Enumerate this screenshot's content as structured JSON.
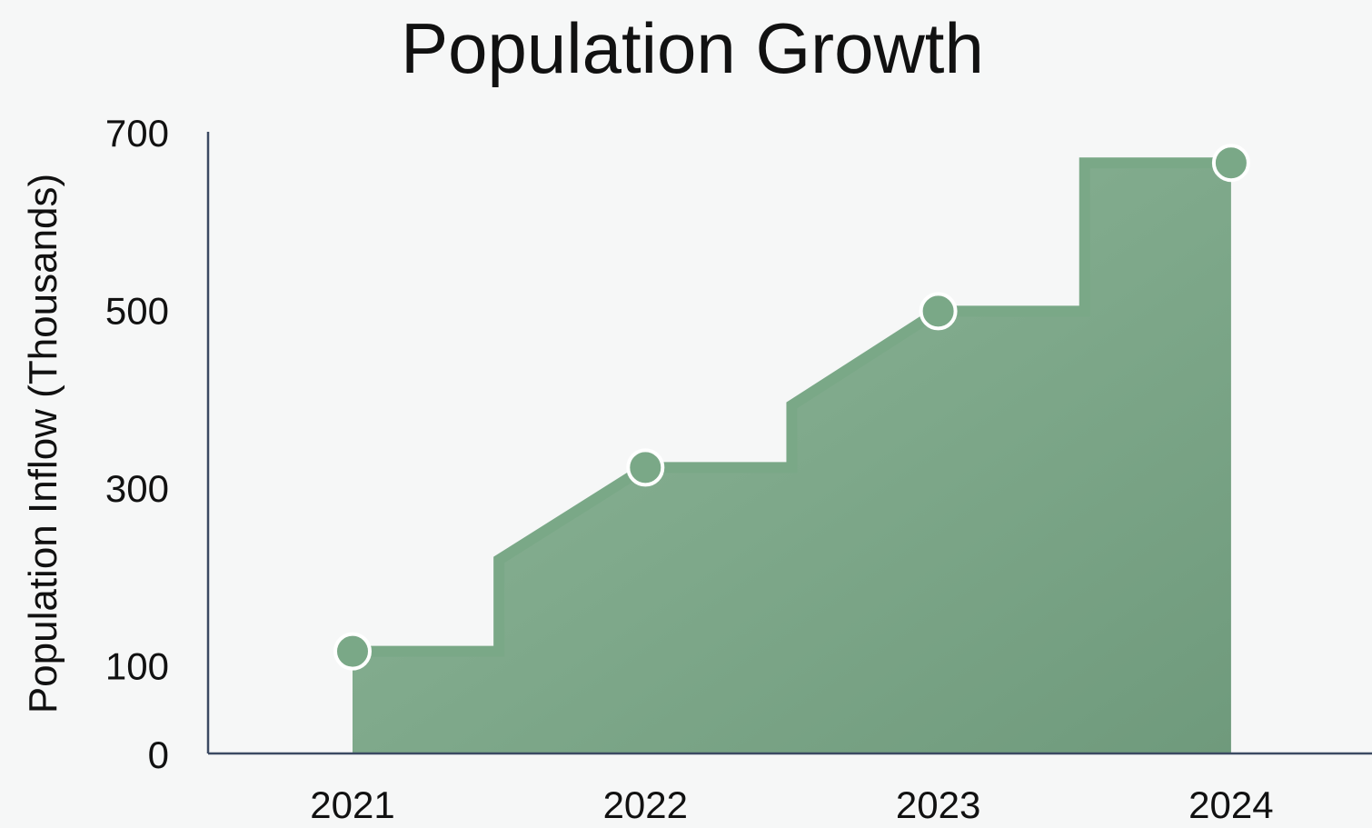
{
  "chart_data": {
    "type": "area",
    "title": "Population Growth",
    "xlabel": "",
    "ylabel": "Population Inflow (Thousands)",
    "categories": [
      "2021",
      "2022",
      "2023",
      "2024"
    ],
    "series": [
      {
        "values": [
          115,
          322,
          498,
          665
        ]
      }
    ],
    "step_profile": [
      {
        "x": 0,
        "y": 115
      },
      {
        "x": 0.5,
        "y": 115
      },
      {
        "x": 0.5,
        "y": 218
      },
      {
        "x": 1,
        "y": 322
      },
      {
        "x": 1.5,
        "y": 322
      },
      {
        "x": 1.5,
        "y": 392
      },
      {
        "x": 2,
        "y": 498
      },
      {
        "x": 2.5,
        "y": 498
      },
      {
        "x": 2.5,
        "y": 665
      },
      {
        "x": 3,
        "y": 665
      }
    ],
    "yticks": [
      0,
      100,
      300,
      500,
      700
    ],
    "ylim": [
      0,
      700
    ],
    "grid": false,
    "legend": "none",
    "colors": {
      "fill": "#8fb89a",
      "fill_dark": "#6f9a7c",
      "line": "#7aa887",
      "marker": "#7aa887",
      "marker_edge": "#ffffff",
      "axis": "#3c4a63",
      "background": "#f6f7f7"
    }
  }
}
